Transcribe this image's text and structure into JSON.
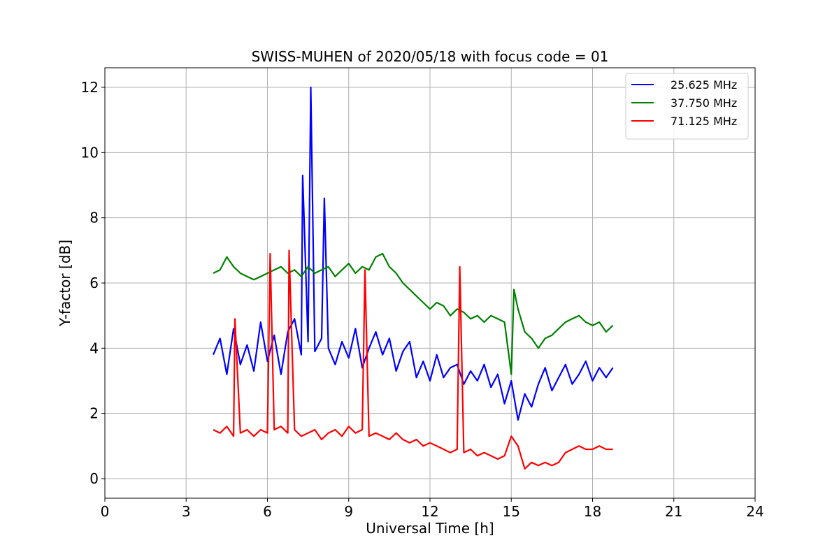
{
  "chart_data": {
    "type": "line",
    "title": "SWISS-MUHEN of 2020/05/18 with focus code = 01",
    "xlabel": "Universal Time [h]",
    "ylabel": "Y-factor [dB]",
    "xlim": [
      0,
      24
    ],
    "ylim": [
      -0.6,
      12.6
    ],
    "xticks": [
      0,
      3,
      6,
      9,
      12,
      15,
      18,
      21,
      24
    ],
    "yticks": [
      0,
      2,
      4,
      6,
      8,
      10,
      12
    ],
    "grid": true,
    "legend_position": "top-right",
    "series": [
      {
        "name": "25.625 MHz",
        "color": "#0000ff",
        "x": [
          4.0,
          4.25,
          4.5,
          4.75,
          5.0,
          5.25,
          5.5,
          5.75,
          6.0,
          6.25,
          6.5,
          6.75,
          7.0,
          7.25,
          7.3,
          7.5,
          7.6,
          7.75,
          8.0,
          8.1,
          8.25,
          8.5,
          8.75,
          9.0,
          9.25,
          9.5,
          9.75,
          10.0,
          10.25,
          10.5,
          10.75,
          11.0,
          11.25,
          11.5,
          11.75,
          12.0,
          12.25,
          12.5,
          12.75,
          13.0,
          13.25,
          13.5,
          13.75,
          14.0,
          14.25,
          14.5,
          14.75,
          15.0,
          15.25,
          15.5,
          15.75,
          16.0,
          16.25,
          16.5,
          16.75,
          17.0,
          17.25,
          17.5,
          17.75,
          18.0,
          18.25,
          18.5,
          18.75
        ],
        "y": [
          3.8,
          4.3,
          3.2,
          4.6,
          3.5,
          4.1,
          3.3,
          4.8,
          3.6,
          4.4,
          3.2,
          4.5,
          4.9,
          3.8,
          9.3,
          4.2,
          12.0,
          3.9,
          4.3,
          8.6,
          4.0,
          3.5,
          4.2,
          3.7,
          4.6,
          3.4,
          4.0,
          4.5,
          3.8,
          4.3,
          3.3,
          3.9,
          4.2,
          3.1,
          3.6,
          3.0,
          3.8,
          3.1,
          3.4,
          3.5,
          2.9,
          3.3,
          3.0,
          3.5,
          2.8,
          3.2,
          2.3,
          3.0,
          1.8,
          2.6,
          2.2,
          2.9,
          3.4,
          2.7,
          3.1,
          3.5,
          2.9,
          3.2,
          3.6,
          3.0,
          3.4,
          3.1,
          3.4
        ]
      },
      {
        "name": "37.750 MHz",
        "color": "#008000",
        "x": [
          4.0,
          4.25,
          4.5,
          4.75,
          5.0,
          5.25,
          5.5,
          5.75,
          6.0,
          6.25,
          6.5,
          6.75,
          7.0,
          7.25,
          7.5,
          7.75,
          8.0,
          8.25,
          8.5,
          8.75,
          9.0,
          9.25,
          9.5,
          9.75,
          10.0,
          10.25,
          10.5,
          10.75,
          11.0,
          11.25,
          11.5,
          11.75,
          12.0,
          12.25,
          12.5,
          12.75,
          13.0,
          13.25,
          13.5,
          13.75,
          14.0,
          14.25,
          14.5,
          14.75,
          15.0,
          15.1,
          15.25,
          15.5,
          15.75,
          16.0,
          16.25,
          16.5,
          16.75,
          17.0,
          17.25,
          17.5,
          17.75,
          18.0,
          18.25,
          18.5,
          18.75
        ],
        "y": [
          6.3,
          6.4,
          6.8,
          6.5,
          6.3,
          6.2,
          6.1,
          6.2,
          6.3,
          6.4,
          6.5,
          6.3,
          6.4,
          6.2,
          6.5,
          6.3,
          6.4,
          6.5,
          6.2,
          6.4,
          6.6,
          6.3,
          6.5,
          6.4,
          6.8,
          6.9,
          6.5,
          6.3,
          6.0,
          5.8,
          5.6,
          5.4,
          5.2,
          5.4,
          5.3,
          5.0,
          5.2,
          5.1,
          4.9,
          5.0,
          4.8,
          5.0,
          4.9,
          4.8,
          3.2,
          5.8,
          5.2,
          4.5,
          4.3,
          4.0,
          4.3,
          4.4,
          4.6,
          4.8,
          4.9,
          5.0,
          4.8,
          4.7,
          4.8,
          4.5,
          4.7
        ]
      },
      {
        "name": "71.125 MHz",
        "color": "#ff0000",
        "x": [
          4.0,
          4.25,
          4.5,
          4.75,
          4.8,
          5.0,
          5.25,
          5.5,
          5.75,
          6.0,
          6.1,
          6.25,
          6.5,
          6.75,
          6.8,
          7.0,
          7.25,
          7.5,
          7.75,
          8.0,
          8.25,
          8.5,
          8.75,
          9.0,
          9.25,
          9.5,
          9.6,
          9.75,
          10.0,
          10.25,
          10.5,
          10.75,
          11.0,
          11.25,
          11.5,
          11.75,
          12.0,
          12.25,
          12.5,
          12.75,
          13.0,
          13.1,
          13.25,
          13.5,
          13.75,
          14.0,
          14.25,
          14.5,
          14.75,
          15.0,
          15.25,
          15.5,
          15.75,
          16.0,
          16.25,
          16.5,
          16.75,
          17.0,
          17.25,
          17.5,
          17.75,
          18.0,
          18.25,
          18.5,
          18.75
        ],
        "y": [
          1.5,
          1.4,
          1.6,
          1.3,
          4.9,
          1.4,
          1.5,
          1.3,
          1.5,
          1.4,
          6.9,
          1.5,
          1.6,
          1.4,
          7.0,
          1.5,
          1.3,
          1.4,
          1.5,
          1.2,
          1.4,
          1.5,
          1.3,
          1.6,
          1.4,
          1.5,
          6.4,
          1.3,
          1.4,
          1.3,
          1.2,
          1.4,
          1.2,
          1.1,
          1.2,
          1.0,
          1.1,
          1.0,
          0.9,
          0.8,
          0.9,
          6.5,
          0.8,
          0.9,
          0.7,
          0.8,
          0.7,
          0.6,
          0.7,
          1.3,
          1.0,
          0.3,
          0.5,
          0.4,
          0.5,
          0.4,
          0.5,
          0.8,
          0.9,
          1.0,
          0.9,
          0.9,
          1.0,
          0.9,
          0.9
        ]
      }
    ]
  }
}
